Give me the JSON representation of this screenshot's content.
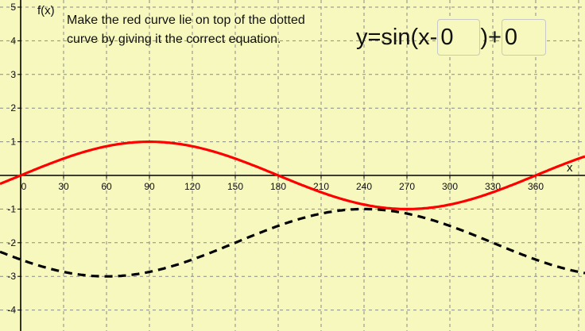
{
  "instructions": {
    "line1": "Make the red curve lie on top of the dotted",
    "line2": "curve by giving it the correct equation."
  },
  "equation": {
    "prefix": "y=sin(x-",
    "shift_value": "0",
    "middle": ")+",
    "offset_value": "0"
  },
  "axes": {
    "y_label": "f(x)",
    "x_label": "x"
  },
  "chart_data": {
    "type": "line",
    "x_ticks": [
      "0",
      "30",
      "60",
      "90",
      "120",
      "150",
      "180",
      "210",
      "240",
      "270",
      "300",
      "330",
      "360"
    ],
    "y_ticks": [
      "5",
      "4",
      "3",
      "2",
      "1",
      "-1",
      "-2",
      "-3",
      "-4"
    ],
    "xlim": [
      -30,
      405
    ],
    "ylim": [
      -4.5,
      5.1
    ],
    "grid": true,
    "series": [
      {
        "style": "solid",
        "color": "#ff0000",
        "shift": 0,
        "offset": 0
      },
      {
        "style": "dashed",
        "color": "#000000",
        "shift": 150,
        "offset": -2
      }
    ]
  }
}
